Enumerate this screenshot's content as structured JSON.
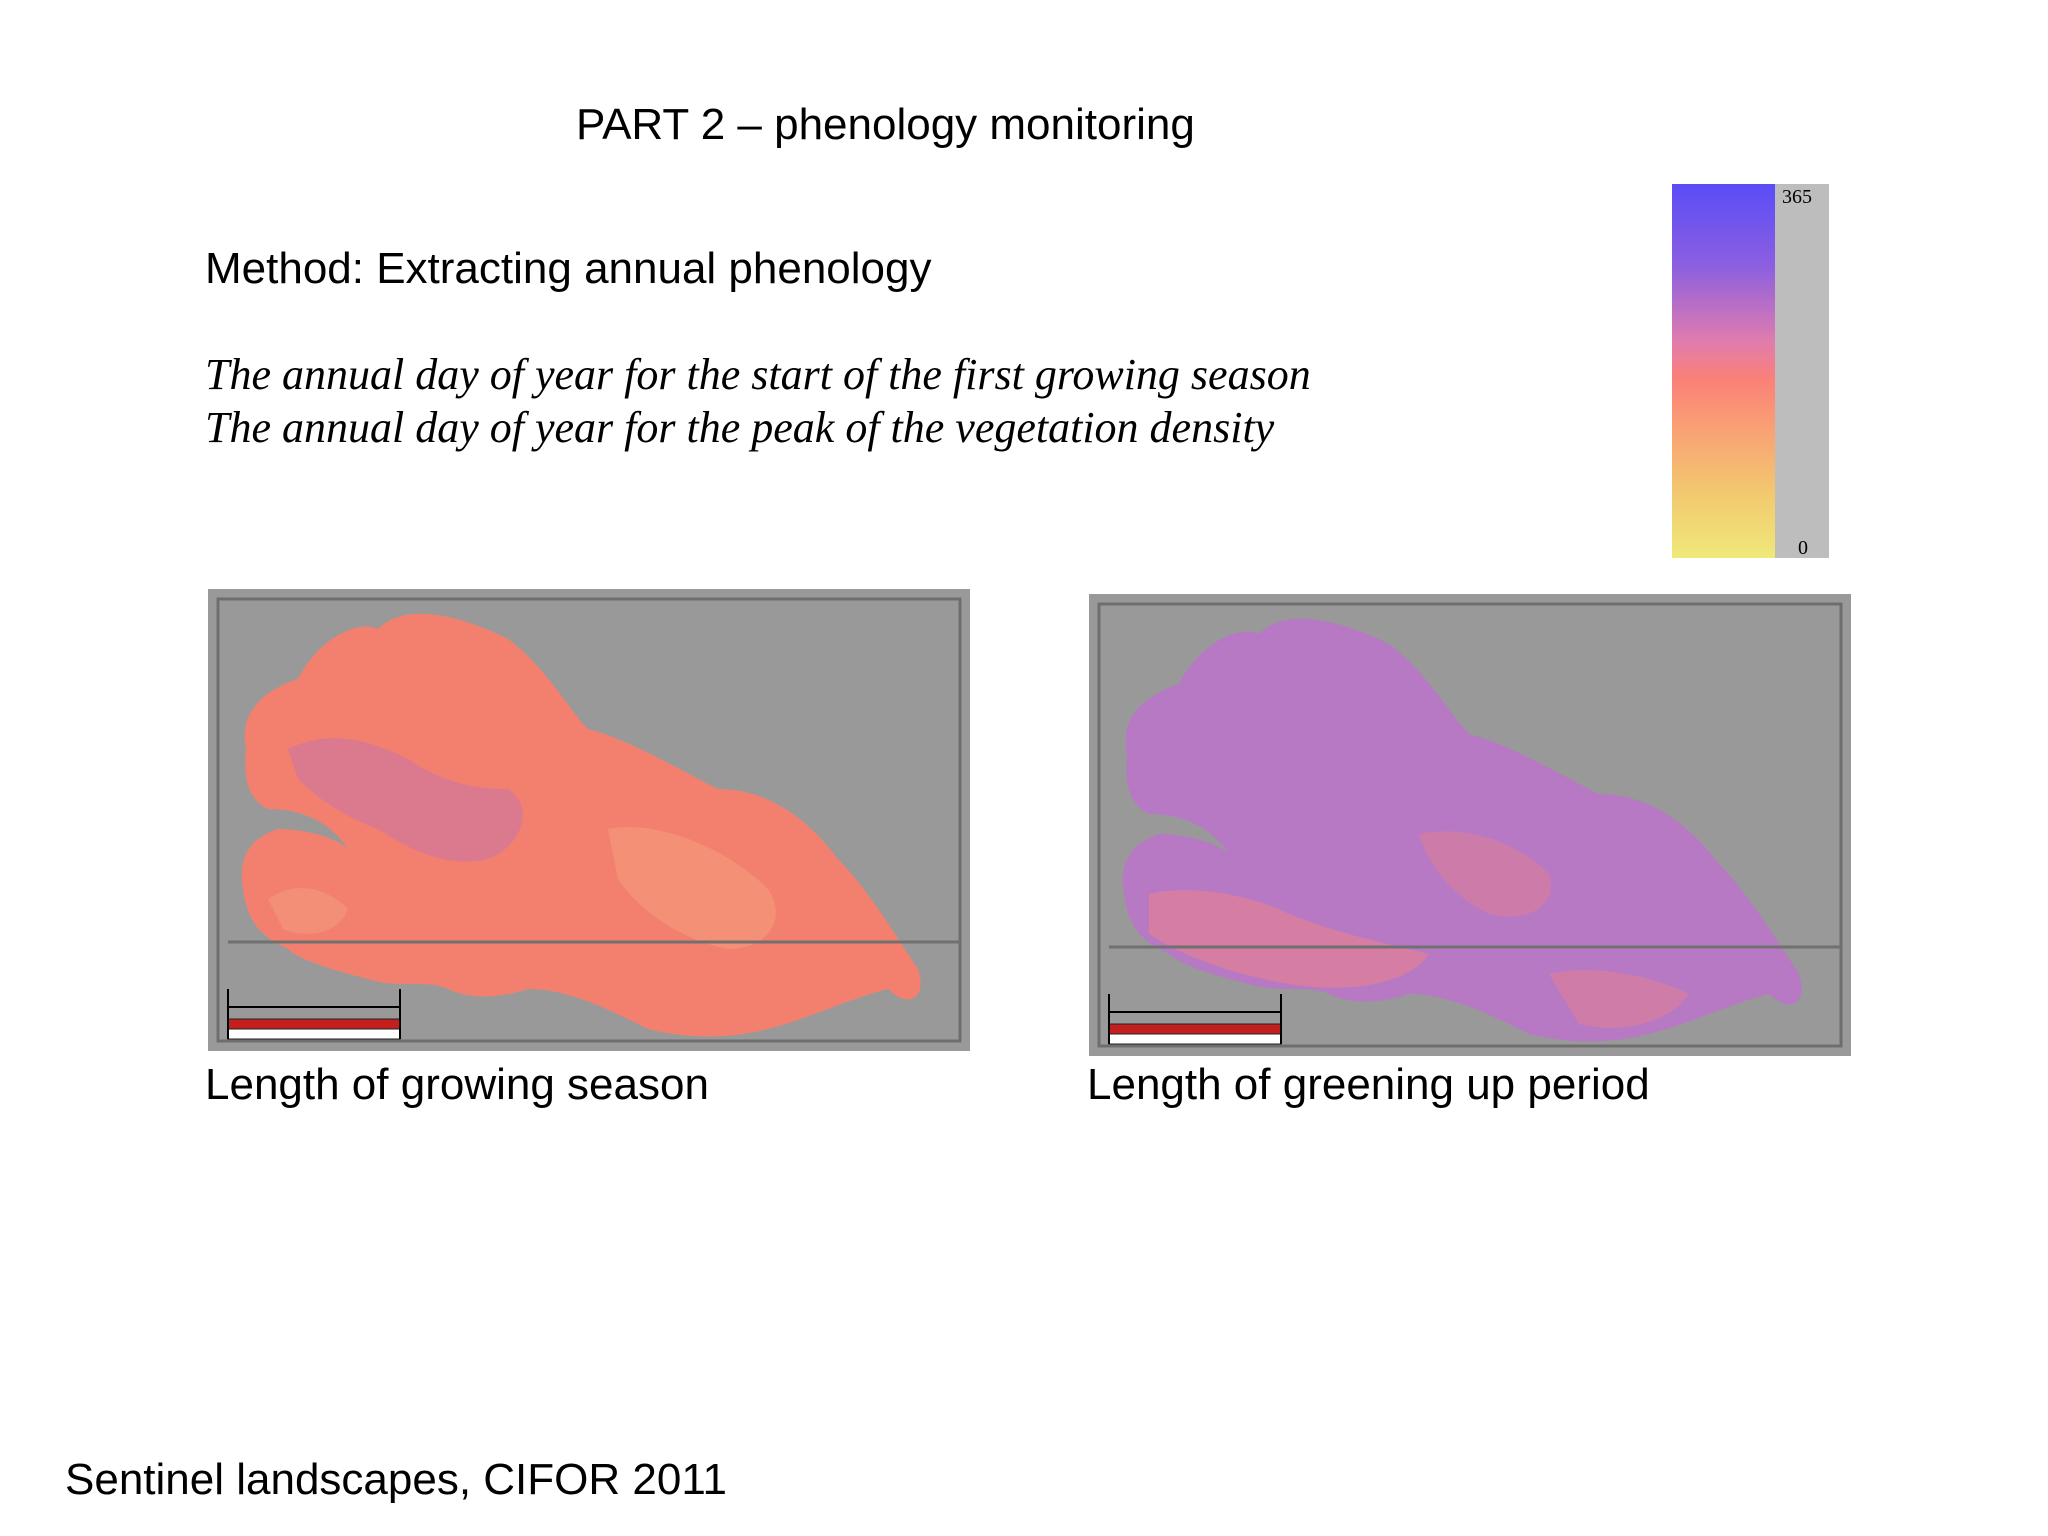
{
  "slide": {
    "title": "PART 2 – phenology monitoring",
    "method": "Method: Extracting annual phenology",
    "lines": [
      "The annual day of year for the start of the first growing season",
      "The annual day of year for the peak of the vegetation density"
    ],
    "footer": "Sentinel landscapes, CIFOR 2011"
  },
  "legend": {
    "max_label": "365",
    "min_label": "0",
    "colors": [
      "#5a4cf7",
      "#e07cae",
      "#fa8078",
      "#efe979"
    ]
  },
  "maps": [
    {
      "caption": "Length of growing season",
      "fill": "#f3806f",
      "alt_fill": "#c774a8"
    },
    {
      "caption": "Length of greening up period",
      "fill": "#b779c4",
      "alt_fill": "#e9808c"
    }
  ],
  "colors": {
    "panel_background": "#999999",
    "scale_bar": "#c41e1e"
  }
}
